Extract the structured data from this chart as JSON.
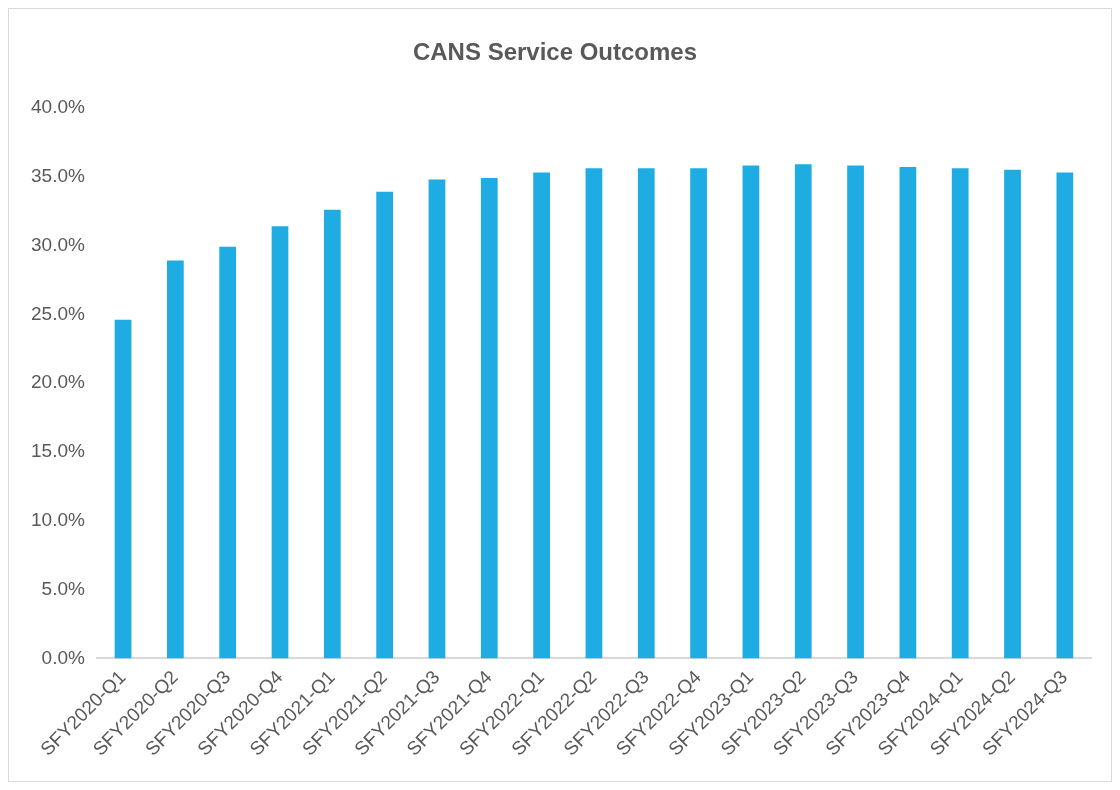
{
  "chart_data": {
    "type": "bar",
    "title": "CANS Service Outcomes",
    "categories": [
      "SFY2020-Q1",
      "SFY2020-Q2",
      "SFY2020-Q3",
      "SFY2020-Q4",
      "SFY2021-Q1",
      "SFY2021-Q2",
      "SFY2021-Q3",
      "SFY2021-Q4",
      "SFY2022-Q1",
      "SFY2022-Q2",
      "SFY2022-Q3",
      "SFY2022-Q4",
      "SFY2023-Q1",
      "SFY2023-Q2",
      "SFY2023-Q3",
      "SFY2023-Q4",
      "SFY2024-Q1",
      "SFY2024-Q2",
      "SFY2024-Q3"
    ],
    "values": [
      24.6,
      28.9,
      29.9,
      31.4,
      32.6,
      33.9,
      34.8,
      34.9,
      35.3,
      35.6,
      35.6,
      35.6,
      35.8,
      35.9,
      35.8,
      35.7,
      35.6,
      35.5,
      35.3
    ],
    "color": "#1eace3",
    "ylim": [
      0,
      40
    ],
    "yticks": [
      {
        "value": 0,
        "label": "0.0%"
      },
      {
        "value": 5,
        "label": "5.0%"
      },
      {
        "value": 10,
        "label": "10.0%"
      },
      {
        "value": 15,
        "label": "15.0%"
      },
      {
        "value": 20,
        "label": "20.0%"
      },
      {
        "value": 25,
        "label": "25.0%"
      },
      {
        "value": 30,
        "label": "30.0%"
      },
      {
        "value": 35,
        "label": "35.0%"
      },
      {
        "value": 40,
        "label": "40.0%"
      }
    ],
    "grid": false,
    "legend": false
  }
}
